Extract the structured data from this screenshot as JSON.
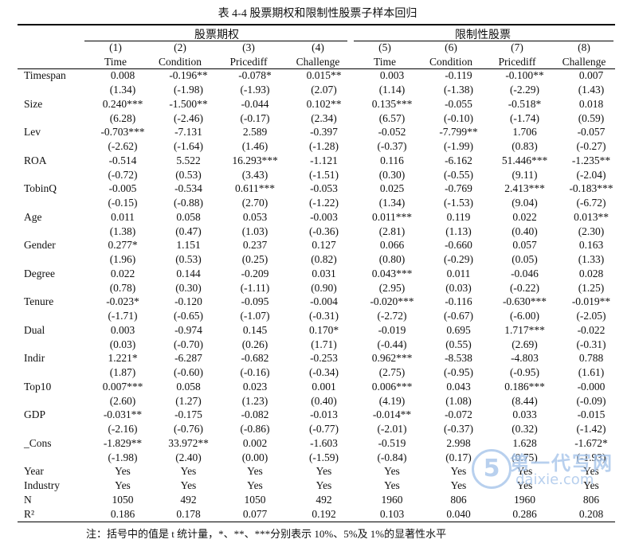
{
  "title": "表 4-4  股票期权和限制性股票子样本回归",
  "groups": [
    "股票期权",
    "限制性股票"
  ],
  "columns": [
    {
      "num": "(1)",
      "name": "Time"
    },
    {
      "num": "(2)",
      "name": "Condition"
    },
    {
      "num": "(3)",
      "name": "Pricediff"
    },
    {
      "num": "(4)",
      "name": "Challenge"
    },
    {
      "num": "(5)",
      "name": "Time"
    },
    {
      "num": "(6)",
      "name": "Condition"
    },
    {
      "num": "(7)",
      "name": "Pricediff"
    },
    {
      "num": "(8)",
      "name": "Challenge"
    }
  ],
  "rows": [
    {
      "label": "Timespan",
      "cells": [
        "0.008",
        "-0.196**",
        "-0.078*",
        "0.015**",
        "0.003",
        "-0.119",
        "-0.100**",
        "0.007"
      ]
    },
    {
      "label": "",
      "cells": [
        "(1.34)",
        "(-1.98)",
        "(-1.93)",
        "(2.07)",
        "(1.14)",
        "(-1.38)",
        "(-2.29)",
        "(1.43)"
      ]
    },
    {
      "label": "Size",
      "cells": [
        "0.240***",
        "-1.500**",
        "-0.044",
        "0.102**",
        "0.135***",
        "-0.055",
        "-0.518*",
        "0.018"
      ]
    },
    {
      "label": "",
      "cells": [
        "(6.28)",
        "(-2.46)",
        "(-0.17)",
        "(2.34)",
        "(6.57)",
        "(-0.10)",
        "(-1.74)",
        "(0.59)"
      ]
    },
    {
      "label": "Lev",
      "cells": [
        "-0.703***",
        "-7.131",
        "2.589",
        "-0.397",
        "-0.052",
        "-7.799**",
        "1.706",
        "-0.057"
      ]
    },
    {
      "label": "",
      "cells": [
        "(-2.62)",
        "(-1.64)",
        "(1.46)",
        "(-1.28)",
        "(-0.37)",
        "(-1.99)",
        "(0.83)",
        "(-0.27)"
      ]
    },
    {
      "label": "ROA",
      "cells": [
        "-0.514",
        "5.522",
        "16.293***",
        "-1.121",
        "0.116",
        "-6.162",
        "51.446***",
        "-1.235**"
      ]
    },
    {
      "label": "",
      "cells": [
        "(-0.72)",
        "(0.53)",
        "(3.43)",
        "(-1.51)",
        "(0.30)",
        "(-0.55)",
        "(9.11)",
        "(-2.04)"
      ]
    },
    {
      "label": "TobinQ",
      "cells": [
        "-0.005",
        "-0.534",
        "0.611***",
        "-0.053",
        "0.025",
        "-0.769",
        "2.413***",
        "-0.183***"
      ]
    },
    {
      "label": "",
      "cells": [
        "(-0.15)",
        "(-0.88)",
        "(2.70)",
        "(-1.22)",
        "(1.34)",
        "(-1.53)",
        "(9.04)",
        "(-6.72)"
      ]
    },
    {
      "label": "Age",
      "cells": [
        "0.011",
        "0.058",
        "0.053",
        "-0.003",
        "0.011***",
        "0.119",
        "0.022",
        "0.013**"
      ]
    },
    {
      "label": "",
      "cells": [
        "(1.38)",
        "(0.47)",
        "(1.03)",
        "(-0.36)",
        "(2.81)",
        "(1.13)",
        "(0.40)",
        "(2.30)"
      ]
    },
    {
      "label": "Gender",
      "cells": [
        "0.277*",
        "1.151",
        "0.237",
        "0.127",
        "0.066",
        "-0.660",
        "0.057",
        "0.163"
      ]
    },
    {
      "label": "",
      "cells": [
        "(1.96)",
        "(0.53)",
        "(0.25)",
        "(0.82)",
        "(0.80)",
        "(-0.29)",
        "(0.05)",
        "(1.33)"
      ]
    },
    {
      "label": "Degree",
      "cells": [
        "0.022",
        "0.144",
        "-0.209",
        "0.031",
        "0.043***",
        "0.011",
        "-0.046",
        "0.028"
      ]
    },
    {
      "label": "",
      "cells": [
        "(0.78)",
        "(0.30)",
        "(-1.11)",
        "(0.90)",
        "(2.95)",
        "(0.03)",
        "(-0.22)",
        "(1.25)"
      ]
    },
    {
      "label": "Tenure",
      "cells": [
        "-0.023*",
        "-0.120",
        "-0.095",
        "-0.004",
        "-0.020***",
        "-0.116",
        "-0.630***",
        "-0.019**"
      ]
    },
    {
      "label": "",
      "cells": [
        "(-1.71)",
        "(-0.65)",
        "(-1.07)",
        "(-0.31)",
        "(-2.72)",
        "(-0.67)",
        "(-6.00)",
        "(-2.05)"
      ]
    },
    {
      "label": "Dual",
      "cells": [
        "0.003",
        "-0.974",
        "0.145",
        "0.170*",
        "-0.019",
        "0.695",
        "1.717***",
        "-0.022"
      ]
    },
    {
      "label": "",
      "cells": [
        "(0.03)",
        "(-0.70)",
        "(0.26)",
        "(1.71)",
        "(-0.44)",
        "(0.55)",
        "(2.69)",
        "(-0.31)"
      ]
    },
    {
      "label": "Indir",
      "cells": [
        "1.221*",
        "-6.287",
        "-0.682",
        "-0.253",
        "0.962***",
        "-8.538",
        "-4.803",
        "0.788"
      ]
    },
    {
      "label": "",
      "cells": [
        "(1.87)",
        "(-0.60)",
        "(-0.16)",
        "(-0.34)",
        "(2.75)",
        "(-0.95)",
        "(-0.95)",
        "(1.61)"
      ]
    },
    {
      "label": "Top10",
      "cells": [
        "0.007***",
        "0.058",
        "0.023",
        "0.001",
        "0.006***",
        "0.043",
        "0.186***",
        "-0.000"
      ]
    },
    {
      "label": "",
      "cells": [
        "(2.60)",
        "(1.27)",
        "(1.23)",
        "(0.40)",
        "(4.19)",
        "(1.08)",
        "(8.44)",
        "(-0.09)"
      ]
    },
    {
      "label": "GDP",
      "cells": [
        "-0.031**",
        "-0.175",
        "-0.082",
        "-0.013",
        "-0.014**",
        "-0.072",
        "0.033",
        "-0.015"
      ]
    },
    {
      "label": "",
      "cells": [
        "(-2.16)",
        "(-0.76)",
        "(-0.86)",
        "(-0.77)",
        "(-2.01)",
        "(-0.37)",
        "(0.32)",
        "(-1.42)"
      ]
    },
    {
      "label": "_Cons",
      "cells": [
        "-1.829**",
        "33.972**",
        "0.002",
        "-1.603",
        "-0.519",
        "2.998",
        "1.628",
        "-1.672*"
      ]
    },
    {
      "label": "",
      "cells": [
        "(-1.98)",
        "(2.40)",
        "(0.00)",
        "(-1.59)",
        "(-0.84)",
        "(0.17)",
        "(0.75)",
        "(-1.93)"
      ]
    },
    {
      "label": "Year",
      "cells": [
        "Yes",
        "Yes",
        "Yes",
        "Yes",
        "Yes",
        "Yes",
        "Yes",
        "Yes"
      ]
    },
    {
      "label": "Industry",
      "cells": [
        "Yes",
        "Yes",
        "Yes",
        "Yes",
        "Yes",
        "Yes",
        "Yes",
        "Yes"
      ]
    },
    {
      "label": "N",
      "cells": [
        "1050",
        "492",
        "1050",
        "492",
        "1960",
        "806",
        "1960",
        "806"
      ]
    },
    {
      "label": "R²",
      "cells": [
        "0.186",
        "0.178",
        "0.077",
        "0.192",
        "0.103",
        "0.040",
        "0.286",
        "0.208"
      ]
    }
  ],
  "note": "注：括号中的值是 t 统计量，*、**、***分别表示 10%、5%及 1%的显著性水平",
  "watermark": {
    "glyph": "5",
    "text1": "第一代写网",
    "text2": "daixie.com"
  }
}
